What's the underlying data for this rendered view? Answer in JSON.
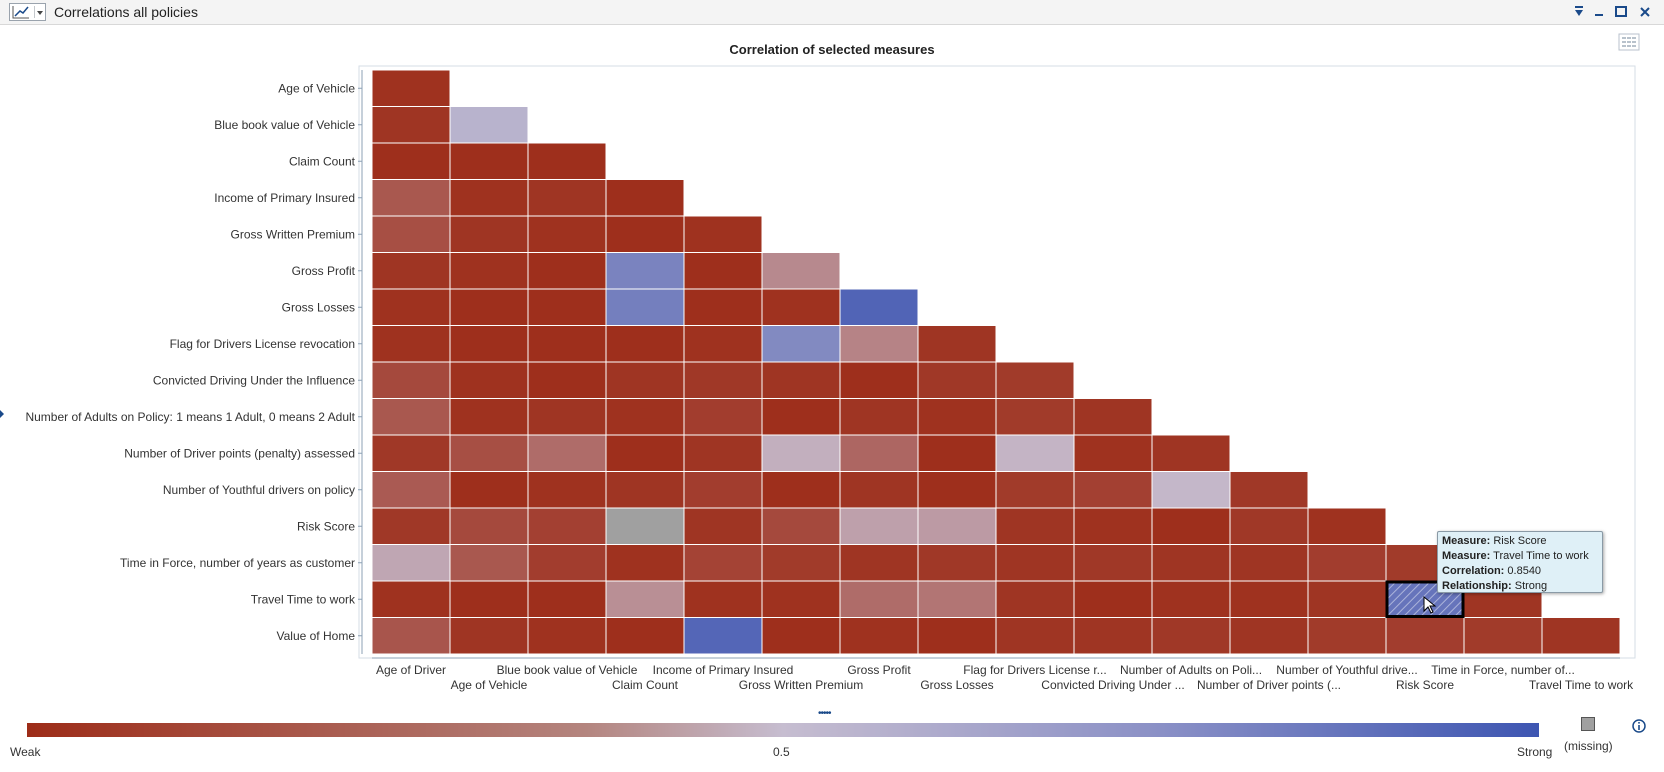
{
  "window": {
    "title": "Correlations all policies",
    "controls": [
      "pin-icon",
      "minimize-icon",
      "maximize-icon",
      "close-icon"
    ]
  },
  "colors": {
    "weak": "#9d2c18",
    "mid": "#c6bdd0",
    "strong": "#3e56b2",
    "missing": "#a0a0a0",
    "accent": "#1a4a8a"
  },
  "chart_data": {
    "type": "heatmap",
    "title": "Correlation of selected measures",
    "row_labels": [
      "Age of Vehicle",
      "Blue book value of Vehicle",
      "Claim Count",
      "Income of Primary Insured",
      "Gross Written Premium",
      "Gross Profit",
      "Gross Losses",
      "Flag for Drivers License revocation",
      "Convicted Driving Under the Influence",
      "Number of Adults on Policy: 1 means 1 Adult, 0 means 2 Adult",
      "Number of Driver points (penalty) assessed",
      "Number of Youthful drivers on policy",
      "Risk Score",
      "Time in Force, number of years as customer",
      "Travel Time to work",
      "Value of Home"
    ],
    "column_labels": [
      "Age of Driver",
      "Age of Vehicle",
      "Blue book value of Vehicle",
      "Claim Count",
      "Income of Primary Insured",
      "Gross Written Premium",
      "Gross Profit",
      "Gross Losses",
      "Flag for Drivers License r...",
      "Convicted Driving Under ...",
      "Number of Adults on Poli...",
      "Number of Driver points (...",
      "Number of Youthful drive...",
      "Risk Score",
      "Time in Force, number of...",
      "Travel Time to work"
    ],
    "values": [
      [
        0.02
      ],
      [
        0.03,
        0.55
      ],
      [
        0.01,
        0.01,
        0.01
      ],
      [
        0.15,
        0.02,
        0.03,
        0.01
      ],
      [
        0.12,
        0.03,
        0.02,
        0.01,
        0.02
      ],
      [
        0.03,
        0.02,
        0.01,
        0.78,
        0.01,
        0.32
      ],
      [
        0.02,
        0.01,
        0.01,
        0.8,
        0.01,
        0.02,
        0.93
      ],
      [
        0.02,
        0.01,
        0.01,
        0.01,
        0.02,
        0.75,
        0.3,
        0.03
      ],
      [
        0.1,
        0.02,
        0.01,
        0.03,
        0.04,
        0.03,
        0.01,
        0.04,
        0.05
      ],
      [
        0.15,
        0.02,
        0.03,
        0.02,
        0.06,
        0.01,
        0.03,
        0.02,
        0.05,
        0.03
      ],
      [
        0.04,
        0.12,
        0.22,
        0.01,
        0.03,
        0.45,
        0.2,
        0.01,
        0.47,
        0.02,
        0.03
      ],
      [
        0.16,
        0.01,
        0.02,
        0.03,
        0.06,
        0.01,
        0.03,
        0.01,
        0.05,
        0.07,
        0.48,
        0.04
      ],
      [
        0.04,
        0.1,
        0.07,
        null,
        0.03,
        0.1,
        0.4,
        0.38,
        0.03,
        0.02,
        0.01,
        0.04,
        0.02
      ],
      [
        0.42,
        0.15,
        0.06,
        0.02,
        0.08,
        0.05,
        0.03,
        0.04,
        0.03,
        0.04,
        0.03,
        0.03,
        0.06,
        0.05
      ],
      [
        0.02,
        0.01,
        0.01,
        0.34,
        0.02,
        0.02,
        0.22,
        0.25,
        0.03,
        0.01,
        0.02,
        0.02,
        0.03,
        0.854,
        0.03
      ],
      [
        0.14,
        0.03,
        0.02,
        0.01,
        0.92,
        0.01,
        0.02,
        0.01,
        0.03,
        0.03,
        0.04,
        0.03,
        0.05,
        0.06,
        0.05,
        0.03
      ]
    ],
    "color_scale": {
      "min": 0,
      "max": 1
    },
    "legend": {
      "weak_label": "Weak",
      "mid_label": "0.5",
      "strong_label": "Strong",
      "missing_label": "(missing)"
    },
    "selected_cell": {
      "row": 14,
      "col": 13
    }
  },
  "tooltip": {
    "rows": [
      {
        "key": "Measure:",
        "value": "Risk Score"
      },
      {
        "key": "Measure:",
        "value": "Travel Time to work"
      },
      {
        "key": "Correlation:",
        "value": "0.8540"
      },
      {
        "key": "Relationship:",
        "value": "Strong"
      }
    ]
  }
}
